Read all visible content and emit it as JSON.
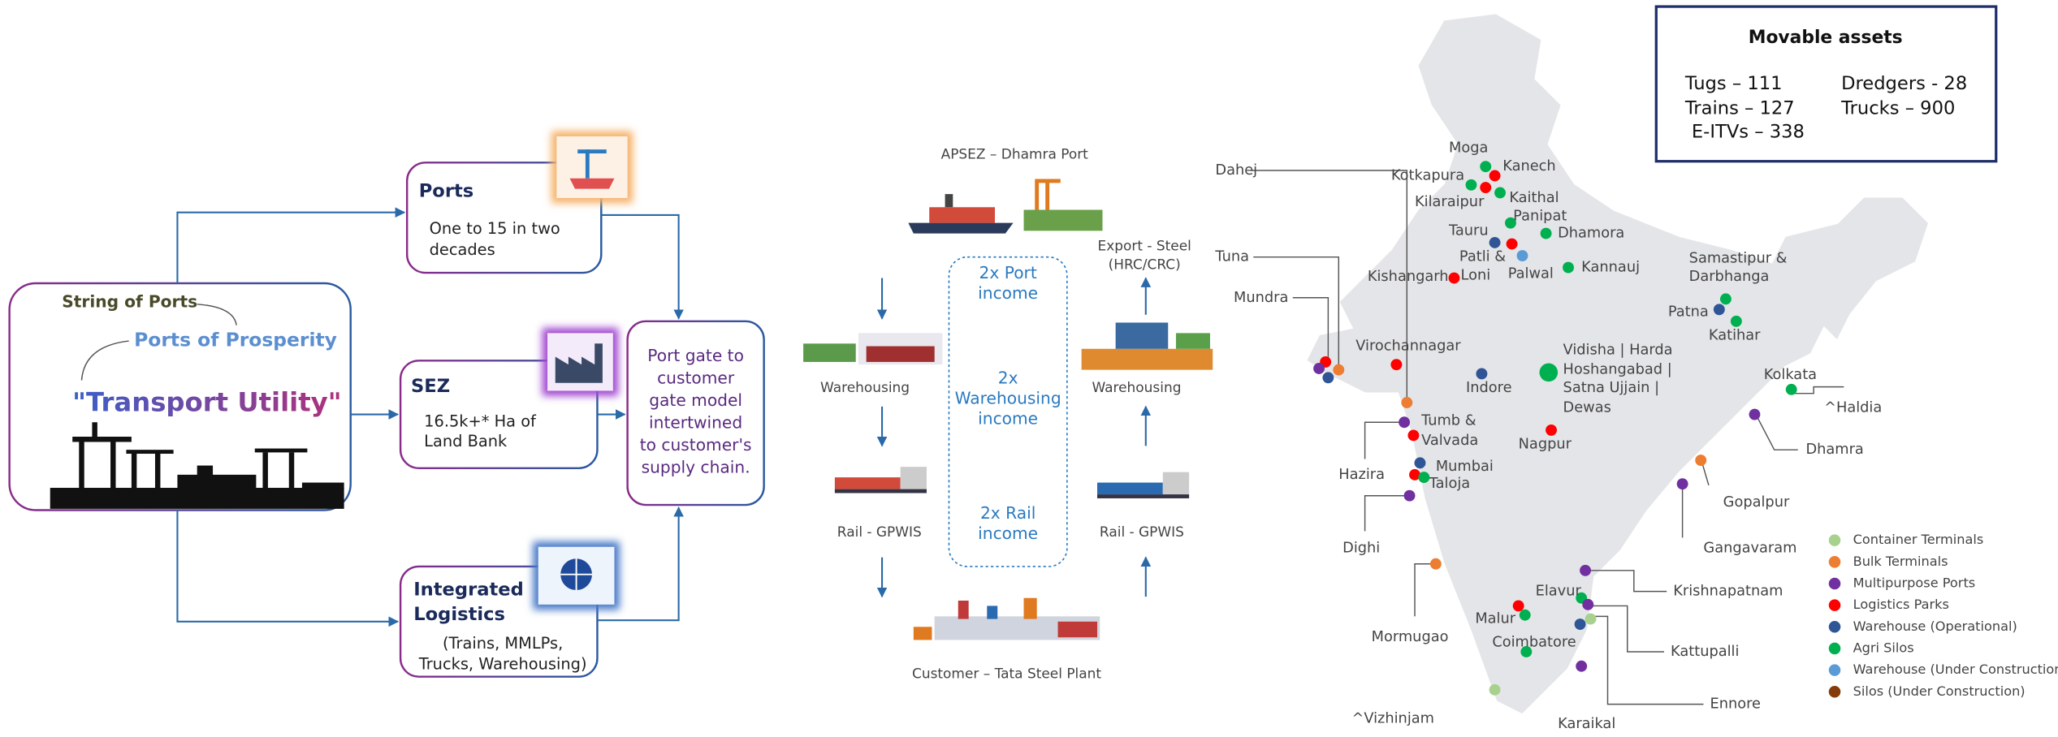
{
  "left": {
    "hub": {
      "tagline": "String of Ports",
      "subtitle": "Ports of Prosperity",
      "title": "\"Transport Utility\""
    },
    "ports": {
      "title": "Ports",
      "text": [
        "One to 15 in two",
        "decades"
      ]
    },
    "sez": {
      "title": "SEZ",
      "text": [
        "16.5k+* Ha of",
        "Land Bank"
      ]
    },
    "logistics": {
      "title": [
        "Integrated",
        "Logistics"
      ],
      "text": [
        "(Trains, MMLPs,",
        "Trucks, Warehousing)"
      ]
    },
    "model": [
      "Port gate to",
      "customer",
      "gate model",
      "intertwined",
      "to customer's",
      "supply chain."
    ]
  },
  "flow": {
    "port": "APSEZ – Dhamra Port",
    "export": [
      "Export - Steel",
      "(HRC/CRC)"
    ],
    "warehousing_left": "Warehousing",
    "warehousing_right": "Warehousing",
    "rail_left": "Rail - GPWIS",
    "rail_right": "Rail - GPWIS",
    "customer": "Customer – Tata Steel Plant",
    "income": [
      [
        "2x Port",
        "income"
      ],
      [
        "2x",
        "Warehousing",
        "income"
      ],
      [
        "2x Rail",
        "income"
      ]
    ]
  },
  "map": {
    "assets": {
      "title": "Movable assets",
      "items": [
        "Tugs – 111",
        "Trains – 127",
        "E-ITVs – 338",
        "Dredgers - 28",
        "Trucks – 900"
      ]
    },
    "places": [
      "Dahej",
      "Tuna",
      "Mundra",
      "Hazira",
      "Dighi",
      "Mormugao",
      "^Vizhinjam",
      "^Haldia",
      "Dhamra",
      "Gopalpur",
      "Gangavaram",
      "Krishnapatnam",
      "Kattupalli",
      "Ennore",
      "Karaikal",
      "Moga",
      "Kanech",
      "Kotkapura",
      "Kilaraipur",
      "Kaithal",
      "Panipat",
      "Tauru",
      "Dhamora",
      "Patli &",
      "Loni",
      "Palwal",
      "Kishangarh",
      "Kannauj",
      "Samastipur &",
      "Darbhanga",
      "Patna",
      "Katihar",
      "Virochannagar",
      "Indore",
      "Vidisha | Harda",
      "Hoshangabad |",
      "Satna  Ujjain |",
      "Dewas",
      "Kolkata",
      "Tumb &",
      "Valvada",
      "Mumbai",
      "Taloja",
      "Nagpur",
      "Elavur",
      "Malur",
      "Coimbatore"
    ],
    "legend": [
      {
        "label": "Container Terminals",
        "color": "#a9d18e"
      },
      {
        "label": "Bulk Terminals",
        "color": "#ed7d31"
      },
      {
        "label": "Multipurpose Ports",
        "color": "#7030a0"
      },
      {
        "label": "Logistics Parks",
        "color": "#ff0000"
      },
      {
        "label": "Warehouse (Operational)",
        "color": "#2f5597"
      },
      {
        "label": "Agri Silos",
        "color": "#00b050"
      },
      {
        "label": "Warehouse (Under Construction)",
        "color": "#5b9bd5"
      },
      {
        "label": "Silos (Under Construction)",
        "color": "#843c0c"
      }
    ]
  }
}
